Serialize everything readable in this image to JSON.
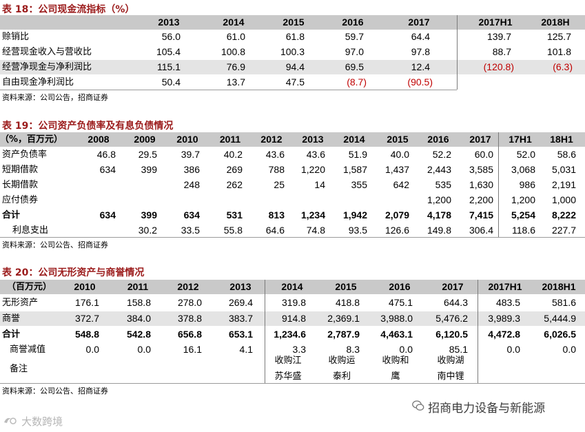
{
  "t18": {
    "title": "表 18：公司现金流指标（%）",
    "headers": [
      "2013",
      "2014",
      "2015",
      "2016",
      "2017",
      "2017H1",
      "2018H"
    ],
    "rows": [
      {
        "label": "赊销比",
        "values": [
          "56.0",
          "61.0",
          "61.8",
          "59.7",
          "64.4",
          "139.7",
          "125.7"
        ]
      },
      {
        "label": "经营现金收入与营收比",
        "values": [
          "105.4",
          "100.8",
          "100.3",
          "97.0",
          "97.8",
          "88.7",
          "101.8"
        ]
      },
      {
        "label": "经营净现金与净利润比",
        "values": [
          "115.1",
          "76.9",
          "94.4",
          "69.5",
          "12.4",
          "(120.8)",
          "(6.3)"
        ]
      },
      {
        "label": "自由现金净利润比",
        "values": [
          "50.4",
          "13.7",
          "47.5",
          "(8.7)",
          "(90.5)",
          "",
          ""
        ]
      }
    ],
    "source": "资料来源：公司公告，招商证券"
  },
  "t19": {
    "title": "表 19：公司资产负债率及有息负债情况",
    "unit_label": "（%，百万元）",
    "headers": [
      "2008",
      "2009",
      "2010",
      "2011",
      "2012",
      "2013",
      "2014",
      "2015",
      "2016",
      "2017",
      "17H1",
      "18H1"
    ],
    "rows": [
      {
        "label": "资产负债率",
        "values": [
          "46.8",
          "29.5",
          "39.7",
          "40.2",
          "43.6",
          "43.6",
          "51.9",
          "40.0",
          "52.2",
          "60.0",
          "52.0",
          "58.6"
        ]
      },
      {
        "label": "短期借款",
        "values": [
          "634",
          "399",
          "386",
          "269",
          "788",
          "1,220",
          "1,587",
          "1,437",
          "2,443",
          "3,585",
          "3,068",
          "5,031"
        ]
      },
      {
        "label": "长期借款",
        "values": [
          "",
          "",
          "248",
          "262",
          "25",
          "14",
          "355",
          "642",
          "535",
          "1,630",
          "986",
          "2,191"
        ]
      },
      {
        "label": "应付债券",
        "values": [
          "",
          "",
          "",
          "",
          "",
          "",
          "",
          "",
          "1,200",
          "2,200",
          "1,200",
          "1,000"
        ]
      },
      {
        "label": "合计",
        "values": [
          "634",
          "399",
          "634",
          "531",
          "813",
          "1,234",
          "1,942",
          "2,079",
          "4,178",
          "7,415",
          "5,254",
          "8,222"
        ]
      },
      {
        "label": "利息支出",
        "values": [
          "",
          "30.2",
          "33.5",
          "55.8",
          "64.6",
          "74.8",
          "93.5",
          "126.6",
          "149.8",
          "306.4",
          "118.6",
          "227.7"
        ]
      }
    ],
    "source": "资料来源：公司公告、招商证券"
  },
  "t20": {
    "title": "表 20：公司无形资产与商誉情况",
    "unit_label": "（百万元）",
    "headers": [
      "2010",
      "2011",
      "2012",
      "2013",
      "2014",
      "2015",
      "2016",
      "2017",
      "2017H1",
      "2018H1"
    ],
    "rows": [
      {
        "label": "无形资产",
        "values": [
          "176.1",
          "158.8",
          "278.0",
          "269.4",
          "319.8",
          "418.8",
          "475.1",
          "644.3",
          "483.5",
          "581.6"
        ]
      },
      {
        "label": "商誉",
        "values": [
          "372.7",
          "384.0",
          "378.8",
          "383.7",
          "914.8",
          "2,369.1",
          "3,988.0",
          "5,476.2",
          "3,989.3",
          "5,444.9"
        ]
      },
      {
        "label": "合计",
        "values": [
          "548.8",
          "542.8",
          "656.8",
          "653.1",
          "1,234.6",
          "2,787.9",
          "4,463.1",
          "6,120.5",
          "4,472.8",
          "6,026.5"
        ]
      },
      {
        "label": "商誉减值",
        "values": [
          "0.0",
          "0.0",
          "16.1",
          "4.1",
          "3.3",
          "8.3",
          "0.0",
          "85.1",
          "0.0",
          "0.0"
        ]
      }
    ],
    "note_label": "备注",
    "notes": [
      {
        "line1": "收购江",
        "line2": "苏华盛"
      },
      {
        "line1": "收购运",
        "line2": "泰利"
      },
      {
        "line1": "收购和",
        "line2": "鹰"
      },
      {
        "line1": "收购湖",
        "line2": "南中锂"
      }
    ],
    "source": "资料来源：公司公告、招商证券"
  },
  "watermark": {
    "left_text": "大数跨境",
    "right_text": "招商电力设备与新能源"
  },
  "colors": {
    "title": "#9b1b1b",
    "negative": "#c00000",
    "header_bg": "#c9c9c9",
    "row_alt_bg": "#e4e4e4"
  }
}
